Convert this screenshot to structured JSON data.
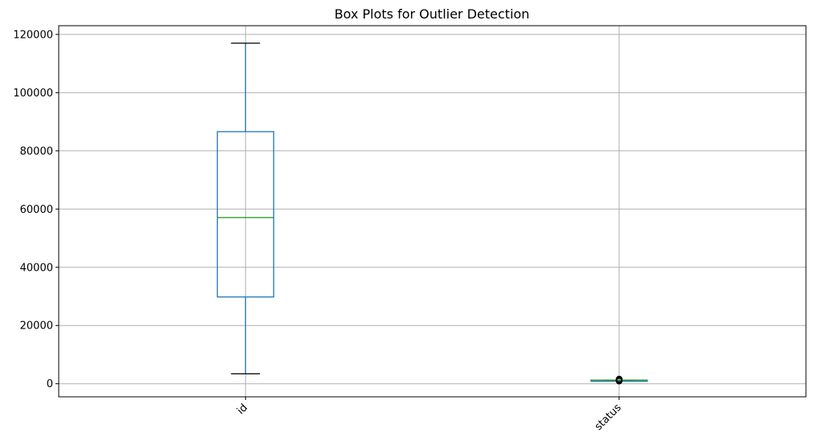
{
  "chart_data": {
    "type": "box",
    "title": "Box Plots for Outlier Detection",
    "xlabel": "",
    "ylabel": "",
    "categories": [
      "id",
      "status"
    ],
    "ylim": [
      -4500,
      123000
    ],
    "yticks": [
      0,
      20000,
      40000,
      60000,
      80000,
      100000,
      120000
    ],
    "ytick_labels": [
      "0",
      "20000",
      "40000",
      "60000",
      "80000",
      "100000",
      "120000"
    ],
    "grid": true,
    "xtick_rotation": 45,
    "boxes": [
      {
        "category": "id",
        "whisker_low": 3400,
        "q1": 29800,
        "median": 57100,
        "q3": 86600,
        "whisker_high": 117000,
        "outliers": []
      },
      {
        "category": "status",
        "whisker_low": 1250,
        "q1": 1250,
        "median": 1250,
        "q3": 1250,
        "whisker_high": 1250,
        "outliers": [
          900,
          1000,
          1100,
          1400,
          1500,
          1600
        ]
      }
    ],
    "colors": {
      "box": "#1f77b4",
      "median": "#2ca02c",
      "whisker": "#1f77b4",
      "cap": "#000000",
      "outlier": "#000000",
      "grid": "#b0b0b0",
      "axis": "#000000"
    }
  }
}
